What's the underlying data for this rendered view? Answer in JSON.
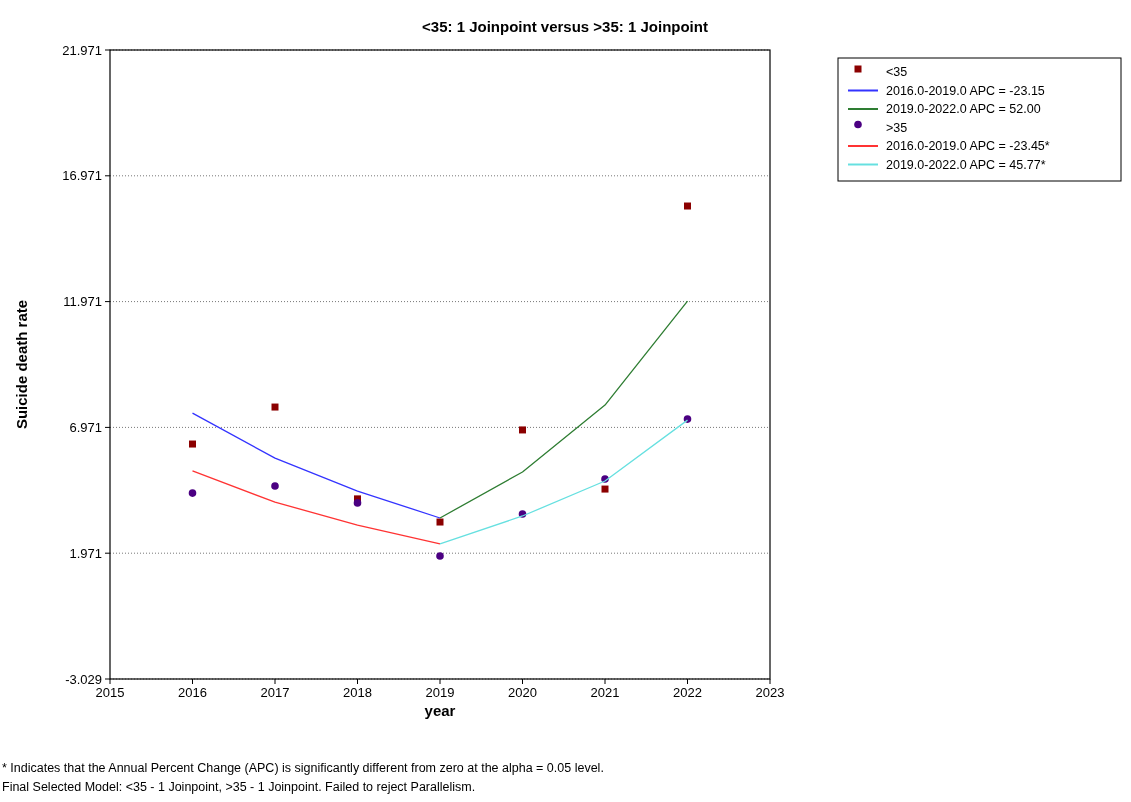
{
  "chart_data": {
    "type": "line",
    "title": "<35: 1 Joinpoint  versus  >35: 1 Joinpoint",
    "xlabel": "year",
    "ylabel": "Suicide death rate",
    "xlim": [
      2015,
      2023
    ],
    "xticks": [
      2015,
      2016,
      2017,
      2018,
      2019,
      2020,
      2021,
      2022,
      2023
    ],
    "ylim": [
      -3.029,
      21.971
    ],
    "yticks": [
      -3.029,
      1.971,
      6.971,
      11.971,
      16.971,
      21.971
    ],
    "grid": "y",
    "legend": "top right",
    "series": [
      {
        "name": "<35",
        "type": "scatter",
        "marker": "square",
        "color": "#8b0000",
        "x": [
          2016,
          2017,
          2018,
          2019,
          2020,
          2021,
          2022
        ],
        "values": [
          6.31,
          7.78,
          4.13,
          3.21,
          6.87,
          4.52,
          15.77
        ]
      },
      {
        "name": "2016.0-2019.0 APC  = -23.15",
        "marker": "none",
        "color": "#3333ff",
        "x": [
          2016,
          2017,
          2018,
          2019
        ],
        "values": [
          7.54,
          5.75,
          4.44,
          3.37
        ]
      },
      {
        "name": "2019.0-2022.0 APC  =  52.00",
        "marker": "none",
        "color": "#2e7d32",
        "x": [
          2019,
          2020,
          2021,
          2022
        ],
        "values": [
          3.37,
          5.2,
          7.86,
          11.99
        ]
      },
      {
        "name": ">35",
        "type": "scatter",
        "marker": "circle",
        "color": "#4b0082",
        "x": [
          2016,
          2017,
          2018,
          2019,
          2020,
          2021,
          2022
        ],
        "values": [
          4.36,
          4.64,
          3.97,
          1.86,
          3.53,
          4.92,
          7.3
        ]
      },
      {
        "name": "2016.0-2019.0 APC  = -23.45*",
        "marker": "none",
        "color": "#ff3333",
        "x": [
          2016,
          2017,
          2018,
          2019
        ],
        "values": [
          5.24,
          4.0,
          3.09,
          2.34
        ]
      },
      {
        "name": "2019.0-2022.0 APC  =  45.77*",
        "marker": "none",
        "color": "#66e0e0",
        "x": [
          2019,
          2020,
          2021,
          2022
        ],
        "values": [
          2.34,
          3.45,
          4.84,
          7.26
        ]
      }
    ],
    "annotations": [
      "* Indicates that the Annual Percent Change (APC) is significantly different from zero at the alpha = 0.05 level.",
      "Final Selected Model: <35 - 1 Joinpoint, >35 - 1 Joinpoint. Failed to reject Parallelism."
    ]
  }
}
